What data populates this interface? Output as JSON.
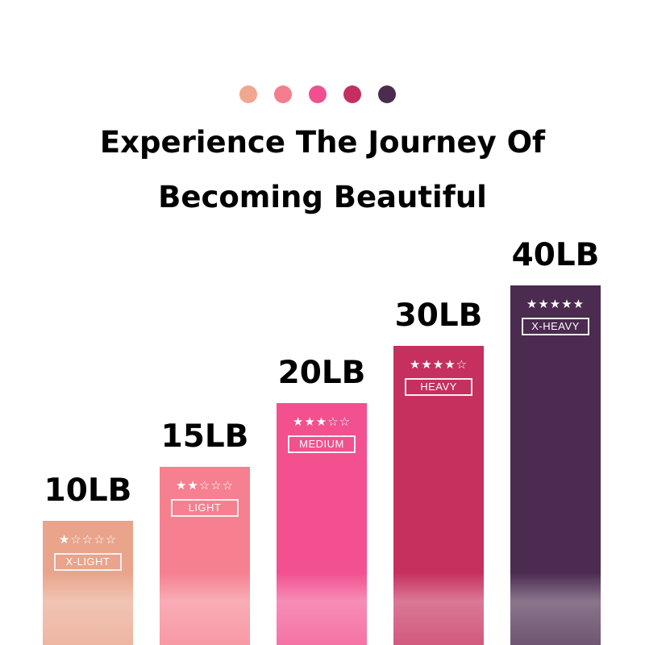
{
  "header": {
    "dot_colors": [
      "#f0a78e",
      "#f37f8e",
      "#f1508f",
      "#c42f5f",
      "#4a2c4e"
    ],
    "title_line1": "Experience The Journey Of",
    "title_line2": "Becoming Beautiful"
  },
  "chart_data": {
    "type": "bar",
    "categories": [
      "10LB",
      "15LB",
      "20LB",
      "30LB",
      "40LB"
    ],
    "values": [
      10,
      15,
      20,
      30,
      40
    ],
    "unit": "LB",
    "levels": [
      "X-LIGHT",
      "LIGHT",
      "MEDIUM",
      "HEAVY",
      "X-HEAVY"
    ],
    "star_ratings": [
      1,
      2,
      3,
      4,
      5
    ],
    "star_max": 5,
    "colors": [
      "#e9a48b",
      "#f6808f",
      "#f2508f",
      "#c6305e",
      "#4b2b4f"
    ],
    "grid": false,
    "axes": false
  }
}
